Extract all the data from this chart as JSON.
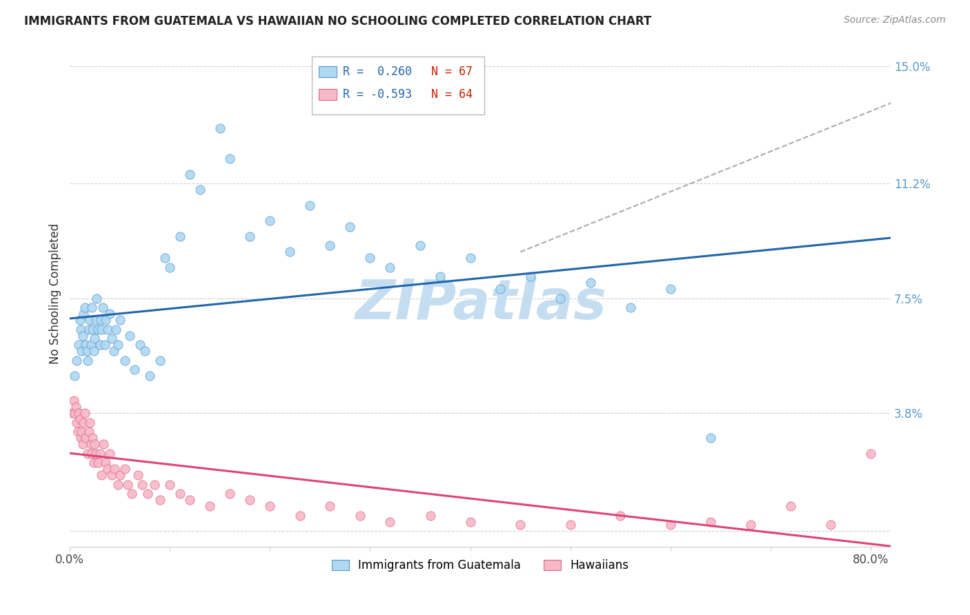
{
  "title": "IMMIGRANTS FROM GUATEMALA VS HAWAIIAN NO SCHOOLING COMPLETED CORRELATION CHART",
  "source": "Source: ZipAtlas.com",
  "ylabel": "No Schooling Completed",
  "xlim": [
    0.0,
    0.82
  ],
  "ylim": [
    -0.005,
    0.158
  ],
  "ytick_positions": [
    0.0,
    0.038,
    0.075,
    0.112,
    0.15
  ],
  "ytick_labels": [
    "",
    "3.8%",
    "7.5%",
    "11.2%",
    "15.0%"
  ],
  "legend_blue_r": "R =  0.260",
  "legend_blue_n": "N = 67",
  "legend_pink_r": "R = -0.593",
  "legend_pink_n": "N = 64",
  "blue_color": "#afd8f2",
  "pink_color": "#f7b8c8",
  "blue_edge": "#5599cc",
  "pink_edge": "#dd6688",
  "blue_line": "#2266aa",
  "pink_line": "#dd4477",
  "grid_color": "#d0d0d0",
  "watermark": "ZIPatlas",
  "watermark_color": "#c5ddf0",
  "blue_x": [
    0.005,
    0.007,
    0.009,
    0.01,
    0.011,
    0.012,
    0.013,
    0.014,
    0.015,
    0.016,
    0.017,
    0.018,
    0.019,
    0.02,
    0.021,
    0.022,
    0.023,
    0.024,
    0.025,
    0.026,
    0.027,
    0.028,
    0.03,
    0.031,
    0.032,
    0.033,
    0.035,
    0.036,
    0.038,
    0.04,
    0.042,
    0.044,
    0.046,
    0.048,
    0.05,
    0.055,
    0.06,
    0.065,
    0.07,
    0.075,
    0.08,
    0.09,
    0.095,
    0.1,
    0.11,
    0.12,
    0.13,
    0.15,
    0.16,
    0.18,
    0.2,
    0.22,
    0.24,
    0.26,
    0.28,
    0.3,
    0.32,
    0.35,
    0.37,
    0.4,
    0.43,
    0.46,
    0.49,
    0.52,
    0.56,
    0.6,
    0.64
  ],
  "blue_y": [
    0.05,
    0.055,
    0.06,
    0.068,
    0.065,
    0.058,
    0.063,
    0.07,
    0.072,
    0.06,
    0.058,
    0.055,
    0.065,
    0.068,
    0.06,
    0.072,
    0.065,
    0.058,
    0.062,
    0.068,
    0.075,
    0.065,
    0.06,
    0.068,
    0.065,
    0.072,
    0.06,
    0.068,
    0.065,
    0.07,
    0.062,
    0.058,
    0.065,
    0.06,
    0.068,
    0.055,
    0.063,
    0.052,
    0.06,
    0.058,
    0.05,
    0.055,
    0.088,
    0.085,
    0.095,
    0.115,
    0.11,
    0.13,
    0.12,
    0.095,
    0.1,
    0.09,
    0.105,
    0.092,
    0.098,
    0.088,
    0.085,
    0.092,
    0.082,
    0.088,
    0.078,
    0.082,
    0.075,
    0.08,
    0.072,
    0.078,
    0.03
  ],
  "pink_x": [
    0.002,
    0.004,
    0.005,
    0.006,
    0.007,
    0.008,
    0.009,
    0.01,
    0.011,
    0.012,
    0.013,
    0.014,
    0.015,
    0.016,
    0.018,
    0.019,
    0.02,
    0.021,
    0.022,
    0.023,
    0.024,
    0.025,
    0.026,
    0.028,
    0.03,
    0.032,
    0.034,
    0.036,
    0.038,
    0.04,
    0.042,
    0.045,
    0.048,
    0.05,
    0.055,
    0.058,
    0.062,
    0.068,
    0.072,
    0.078,
    0.085,
    0.09,
    0.1,
    0.11,
    0.12,
    0.14,
    0.16,
    0.18,
    0.2,
    0.23,
    0.26,
    0.29,
    0.32,
    0.36,
    0.4,
    0.45,
    0.5,
    0.55,
    0.6,
    0.64,
    0.68,
    0.72,
    0.76,
    0.8
  ],
  "pink_y": [
    0.038,
    0.042,
    0.038,
    0.04,
    0.035,
    0.032,
    0.038,
    0.036,
    0.03,
    0.032,
    0.028,
    0.035,
    0.038,
    0.03,
    0.025,
    0.032,
    0.035,
    0.028,
    0.025,
    0.03,
    0.022,
    0.028,
    0.025,
    0.022,
    0.025,
    0.018,
    0.028,
    0.022,
    0.02,
    0.025,
    0.018,
    0.02,
    0.015,
    0.018,
    0.02,
    0.015,
    0.012,
    0.018,
    0.015,
    0.012,
    0.015,
    0.01,
    0.015,
    0.012,
    0.01,
    0.008,
    0.012,
    0.01,
    0.008,
    0.005,
    0.008,
    0.005,
    0.003,
    0.005,
    0.003,
    0.002,
    0.002,
    0.005,
    0.002,
    0.003,
    0.002,
    0.008,
    0.002,
    0.025
  ]
}
